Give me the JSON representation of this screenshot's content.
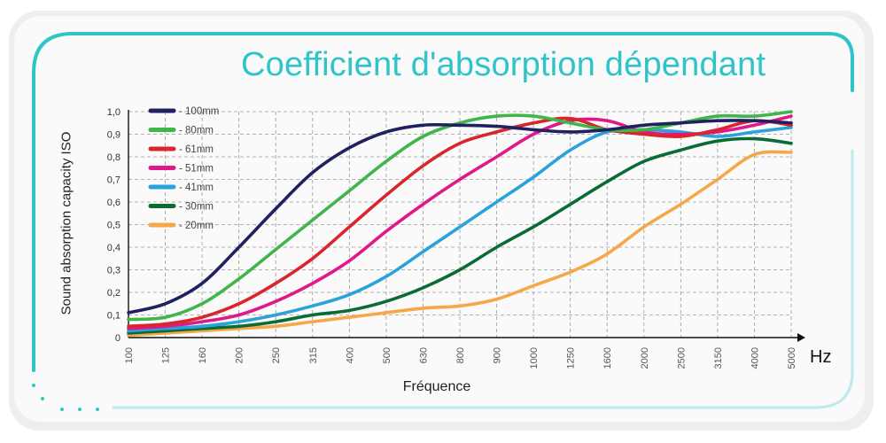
{
  "title": "Coefficient d'absorption dépendant",
  "colors": {
    "accent": "#2ec4c8",
    "card_background": "#fafafa",
    "grid": "#9a9a9a",
    "axis": "#111111"
  },
  "chart_data": {
    "type": "line",
    "xlabel": "Fréquence",
    "x_unit": "Hz",
    "ylabel": "Sound absorption capacity ISO",
    "x": [
      "100",
      "125",
      "160",
      "200",
      "250",
      "315",
      "400",
      "500",
      "630",
      "800",
      "900",
      "1000",
      "1250",
      "1600",
      "2000",
      "2500",
      "3150",
      "4000",
      "5000"
    ],
    "y_ticks": [
      "0",
      "0,1",
      "0,2",
      "0,3",
      "0,4",
      "0,5",
      "0,6",
      "0,7",
      "0,8",
      "0,9",
      "1,0"
    ],
    "ylim": [
      0,
      1.0
    ],
    "grid": true,
    "legend_position": "top-left",
    "series": [
      {
        "name": "- 100mm",
        "color": "#1f2160",
        "values": [
          0.11,
          0.15,
          0.24,
          0.4,
          0.57,
          0.73,
          0.84,
          0.91,
          0.94,
          0.94,
          0.935,
          0.92,
          0.91,
          0.92,
          0.94,
          0.95,
          0.96,
          0.96,
          0.95
        ]
      },
      {
        "name": "- 80mm",
        "color": "#3fb54a",
        "values": [
          0.08,
          0.09,
          0.15,
          0.26,
          0.39,
          0.52,
          0.65,
          0.78,
          0.89,
          0.95,
          0.98,
          0.98,
          0.95,
          0.92,
          0.92,
          0.95,
          0.98,
          0.98,
          1.0
        ]
      },
      {
        "name": "- 61mm",
        "color": "#d9252b",
        "values": [
          0.05,
          0.06,
          0.09,
          0.15,
          0.24,
          0.35,
          0.49,
          0.63,
          0.76,
          0.86,
          0.91,
          0.95,
          0.97,
          0.92,
          0.9,
          0.89,
          0.92,
          0.96,
          0.94
        ]
      },
      {
        "name": "- 51mm",
        "color": "#e0198a",
        "values": [
          0.04,
          0.05,
          0.07,
          0.1,
          0.16,
          0.24,
          0.34,
          0.47,
          0.59,
          0.7,
          0.8,
          0.9,
          0.96,
          0.96,
          0.91,
          0.9,
          0.91,
          0.94,
          0.98
        ]
      },
      {
        "name": "- 41mm",
        "color": "#29a3da",
        "values": [
          0.03,
          0.04,
          0.05,
          0.07,
          0.1,
          0.14,
          0.19,
          0.27,
          0.38,
          0.49,
          0.6,
          0.71,
          0.83,
          0.91,
          0.92,
          0.91,
          0.89,
          0.91,
          0.93
        ]
      },
      {
        "name": "- 30mm",
        "color": "#0a6b35",
        "values": [
          0.02,
          0.03,
          0.04,
          0.05,
          0.07,
          0.1,
          0.12,
          0.16,
          0.22,
          0.3,
          0.4,
          0.49,
          0.59,
          0.69,
          0.78,
          0.83,
          0.87,
          0.88,
          0.86
        ]
      },
      {
        "name": "- 20mm",
        "color": "#f5a84a",
        "values": [
          0.01,
          0.02,
          0.03,
          0.04,
          0.05,
          0.07,
          0.09,
          0.11,
          0.13,
          0.14,
          0.17,
          0.23,
          0.29,
          0.37,
          0.49,
          0.59,
          0.7,
          0.81,
          0.82
        ]
      }
    ]
  }
}
